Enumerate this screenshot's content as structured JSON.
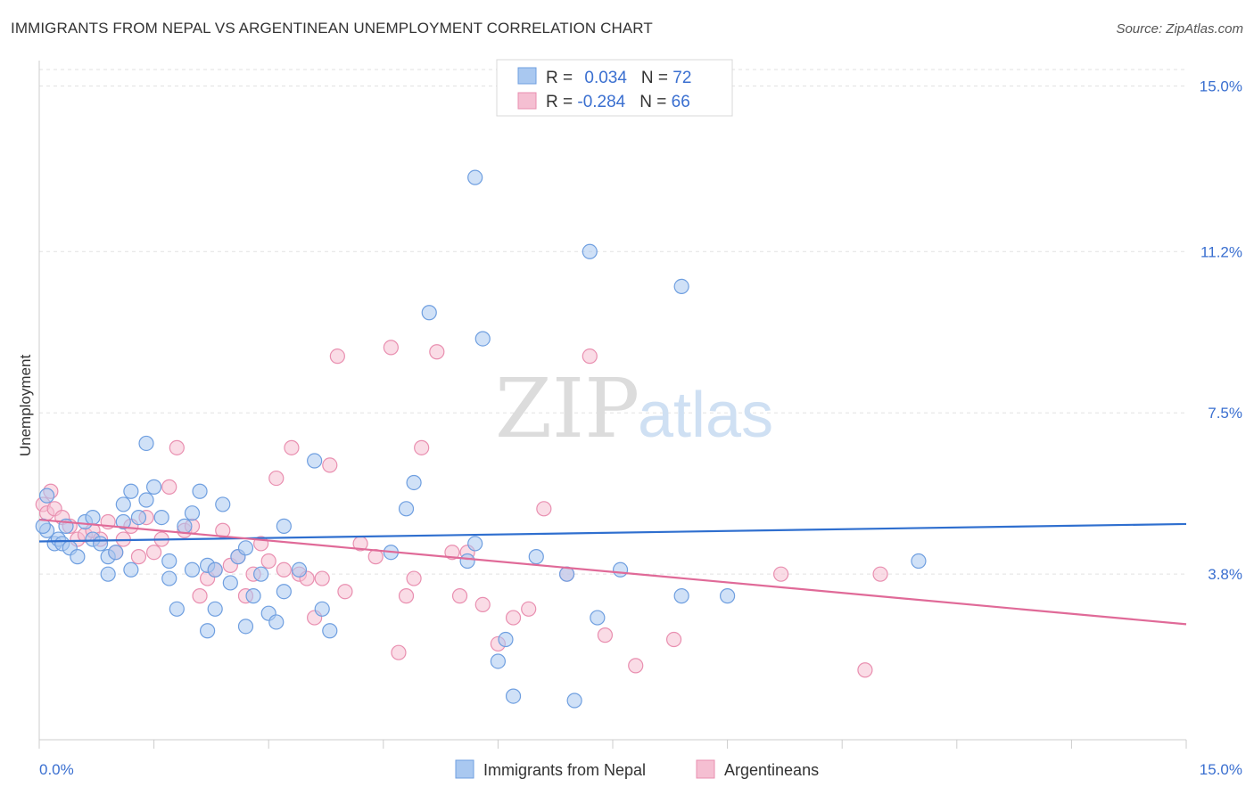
{
  "title": "IMMIGRANTS FROM NEPAL VS ARGENTINEAN UNEMPLOYMENT CORRELATION CHART",
  "source": "Source: ZipAtlas.com",
  "watermark": {
    "zip": "ZIP",
    "atlas": "atlas"
  },
  "chart_data": {
    "type": "scatter",
    "ylabel": "Unemployment",
    "xlim": [
      0,
      15
    ],
    "ylim": [
      0,
      15.5
    ],
    "x_tick_labels": [
      "0.0%",
      "15.0%"
    ],
    "y_ticks": [
      3.8,
      7.5,
      11.2,
      15.0
    ],
    "y_tick_labels": [
      "3.8%",
      "7.5%",
      "11.2%",
      "15.0%"
    ],
    "grid": true,
    "legend_position": "bottom",
    "stats": [
      {
        "r_label": "R = ",
        "r": "0.034",
        "n_label": "N = ",
        "n": "72"
      },
      {
        "r_label": "R = ",
        "r": "-0.284",
        "n_label": "N = ",
        "n": "66"
      }
    ],
    "series": [
      {
        "name": "Immigrants from Nepal",
        "color": "#6f9fe0",
        "fill": "#a9c8f0",
        "trend_color": "#2f6fcf",
        "trend": [
          [
            0,
            4.55
          ],
          [
            15,
            4.95
          ]
        ],
        "points": [
          [
            0.1,
            5.6
          ],
          [
            0.1,
            4.8
          ],
          [
            0.2,
            4.5
          ],
          [
            0.25,
            4.6
          ],
          [
            0.3,
            4.5
          ],
          [
            0.35,
            4.9
          ],
          [
            0.4,
            4.4
          ],
          [
            0.5,
            4.2
          ],
          [
            0.6,
            5.0
          ],
          [
            0.7,
            4.6
          ],
          [
            0.7,
            5.1
          ],
          [
            0.8,
            4.5
          ],
          [
            0.9,
            4.2
          ],
          [
            0.9,
            3.8
          ],
          [
            1.0,
            4.3
          ],
          [
            1.1,
            5.0
          ],
          [
            1.1,
            5.4
          ],
          [
            1.2,
            5.7
          ],
          [
            1.2,
            3.9
          ],
          [
            1.3,
            5.1
          ],
          [
            1.4,
            5.5
          ],
          [
            1.4,
            6.8
          ],
          [
            1.5,
            5.8
          ],
          [
            1.6,
            5.1
          ],
          [
            1.7,
            4.1
          ],
          [
            1.7,
            3.7
          ],
          [
            1.8,
            3.0
          ],
          [
            1.9,
            4.9
          ],
          [
            2.0,
            5.2
          ],
          [
            2.0,
            3.9
          ],
          [
            2.1,
            5.7
          ],
          [
            2.2,
            4.0
          ],
          [
            2.2,
            2.5
          ],
          [
            2.3,
            3.9
          ],
          [
            2.3,
            3.0
          ],
          [
            2.4,
            5.4
          ],
          [
            2.5,
            3.6
          ],
          [
            2.6,
            4.2
          ],
          [
            2.7,
            4.4
          ],
          [
            2.7,
            2.6
          ],
          [
            2.8,
            3.3
          ],
          [
            2.9,
            3.8
          ],
          [
            3.0,
            2.9
          ],
          [
            3.1,
            2.7
          ],
          [
            3.2,
            4.9
          ],
          [
            3.2,
            3.4
          ],
          [
            3.4,
            3.9
          ],
          [
            3.6,
            6.4
          ],
          [
            3.7,
            3.0
          ],
          [
            3.8,
            2.5
          ],
          [
            4.6,
            4.3
          ],
          [
            4.8,
            5.3
          ],
          [
            4.9,
            5.9
          ],
          [
            5.1,
            9.8
          ],
          [
            5.6,
            4.1
          ],
          [
            5.7,
            4.5
          ],
          [
            5.8,
            9.2
          ],
          [
            5.7,
            12.9
          ],
          [
            6.0,
            1.8
          ],
          [
            6.1,
            2.3
          ],
          [
            6.2,
            1.0
          ],
          [
            6.5,
            4.2
          ],
          [
            6.9,
            3.8
          ],
          [
            7.0,
            0.9
          ],
          [
            7.2,
            11.2
          ],
          [
            7.3,
            2.8
          ],
          [
            7.6,
            3.9
          ],
          [
            8.4,
            3.3
          ],
          [
            8.4,
            10.4
          ],
          [
            9.0,
            3.3
          ],
          [
            11.5,
            4.1
          ],
          [
            0.05,
            4.9
          ]
        ]
      },
      {
        "name": "Argentineans",
        "color": "#e98fb0",
        "fill": "#f5bfd2",
        "trend_color": "#e06a98",
        "trend": [
          [
            0,
            5.05
          ],
          [
            15,
            2.65
          ]
        ],
        "points": [
          [
            0.05,
            5.4
          ],
          [
            0.1,
            5.2
          ],
          [
            0.15,
            5.7
          ],
          [
            0.2,
            5.3
          ],
          [
            0.3,
            5.1
          ],
          [
            0.4,
            4.9
          ],
          [
            0.5,
            4.6
          ],
          [
            0.6,
            4.7
          ],
          [
            0.7,
            4.8
          ],
          [
            0.8,
            4.6
          ],
          [
            0.9,
            5.0
          ],
          [
            1.0,
            4.3
          ],
          [
            1.1,
            4.6
          ],
          [
            1.2,
            4.9
          ],
          [
            1.3,
            4.2
          ],
          [
            1.4,
            5.1
          ],
          [
            1.5,
            4.3
          ],
          [
            1.6,
            4.6
          ],
          [
            1.7,
            5.8
          ],
          [
            1.8,
            6.7
          ],
          [
            1.9,
            4.8
          ],
          [
            2.0,
            4.9
          ],
          [
            2.1,
            3.3
          ],
          [
            2.2,
            3.7
          ],
          [
            2.3,
            3.9
          ],
          [
            2.4,
            4.8
          ],
          [
            2.5,
            4.0
          ],
          [
            2.6,
            4.2
          ],
          [
            2.7,
            3.3
          ],
          [
            2.8,
            3.8
          ],
          [
            2.9,
            4.5
          ],
          [
            3.0,
            4.1
          ],
          [
            3.1,
            6.0
          ],
          [
            3.2,
            3.9
          ],
          [
            3.3,
            6.7
          ],
          [
            3.4,
            3.8
          ],
          [
            3.5,
            3.7
          ],
          [
            3.6,
            2.8
          ],
          [
            3.7,
            3.7
          ],
          [
            3.8,
            6.3
          ],
          [
            3.9,
            8.8
          ],
          [
            4.0,
            3.4
          ],
          [
            4.2,
            4.5
          ],
          [
            4.4,
            4.2
          ],
          [
            4.6,
            9.0
          ],
          [
            4.7,
            2.0
          ],
          [
            4.8,
            3.3
          ],
          [
            4.9,
            3.7
          ],
          [
            5.0,
            6.7
          ],
          [
            5.2,
            8.9
          ],
          [
            5.4,
            4.3
          ],
          [
            5.5,
            3.3
          ],
          [
            5.6,
            4.3
          ],
          [
            5.8,
            3.1
          ],
          [
            6.0,
            2.2
          ],
          [
            6.2,
            2.8
          ],
          [
            6.4,
            3.0
          ],
          [
            6.6,
            5.3
          ],
          [
            6.9,
            3.8
          ],
          [
            7.2,
            8.8
          ],
          [
            7.4,
            2.4
          ],
          [
            7.8,
            1.7
          ],
          [
            8.3,
            2.3
          ],
          [
            9.7,
            3.8
          ],
          [
            10.8,
            1.6
          ],
          [
            11.0,
            3.8
          ]
        ]
      }
    ]
  }
}
